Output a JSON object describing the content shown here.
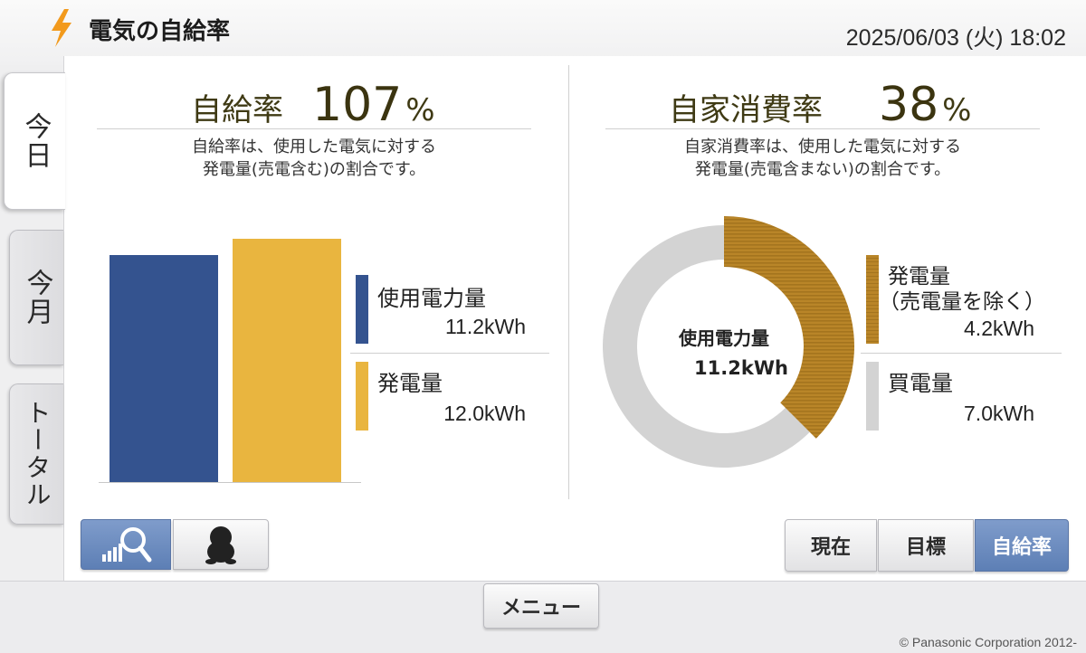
{
  "header": {
    "title": "電気の自給率",
    "datetime": "2025/06/03 (火) 18:02",
    "icon": "lightning-bolt-icon"
  },
  "side_tabs": [
    {
      "label": "今日",
      "active": true
    },
    {
      "label": "今月",
      "active": false
    },
    {
      "label": "トータル",
      "active": false
    }
  ],
  "self_sufficiency": {
    "label": "自給率",
    "value": "107",
    "unit": "%",
    "description_line1": "自給率は、使用した電気に対する",
    "description_line2": "発電量(売電含む)の割合です。",
    "legend": [
      {
        "label": "使用電力量",
        "value": "11.2kWh",
        "color": "#34538f"
      },
      {
        "label": "発電量",
        "value": "12.0kWh",
        "color": "#e9b53f"
      }
    ]
  },
  "self_consumption": {
    "label": "自家消費率",
    "value": "38",
    "unit": "%",
    "description_line1": "自家消費率は、使用した電気に対する",
    "description_line2": "発電量(売電含まない)の割合です。",
    "center_label": "使用電力量",
    "center_value": "11.2kWh",
    "legend": [
      {
        "label_line1": "発電量",
        "label_line2": "（売電量を除く）",
        "value": "4.2kWh",
        "color": "#b9862a"
      },
      {
        "label_line1": "買電量",
        "label_line2": "",
        "value": "7.0kWh",
        "color": "#d3d3d3"
      }
    ]
  },
  "chart_data": [
    {
      "type": "bar",
      "categories": [
        "使用電力量",
        "発電量"
      ],
      "values": [
        11.2,
        12.0
      ],
      "unit": "kWh",
      "colors": [
        "#34538f",
        "#e9b53f"
      ],
      "ylim": [
        0,
        13.4
      ]
    },
    {
      "type": "pie",
      "categories": [
        "発電量（売電量を除く）",
        "買電量"
      ],
      "values": [
        4.2,
        7.0
      ],
      "unit": "kWh",
      "colors": [
        "#b9862a",
        "#d3d3d3"
      ]
    }
  ],
  "left_buttons": [
    {
      "icon": "graph-magnify-icon",
      "active": true
    },
    {
      "icon": "mascot-icon",
      "active": false
    }
  ],
  "view_buttons": [
    {
      "label": "現在",
      "active": false
    },
    {
      "label": "目標",
      "active": false
    },
    {
      "label": "自給率",
      "active": true
    }
  ],
  "footer": {
    "menu_label": "メニュー",
    "copyright": "© Panasonic Corporation 2012-"
  }
}
